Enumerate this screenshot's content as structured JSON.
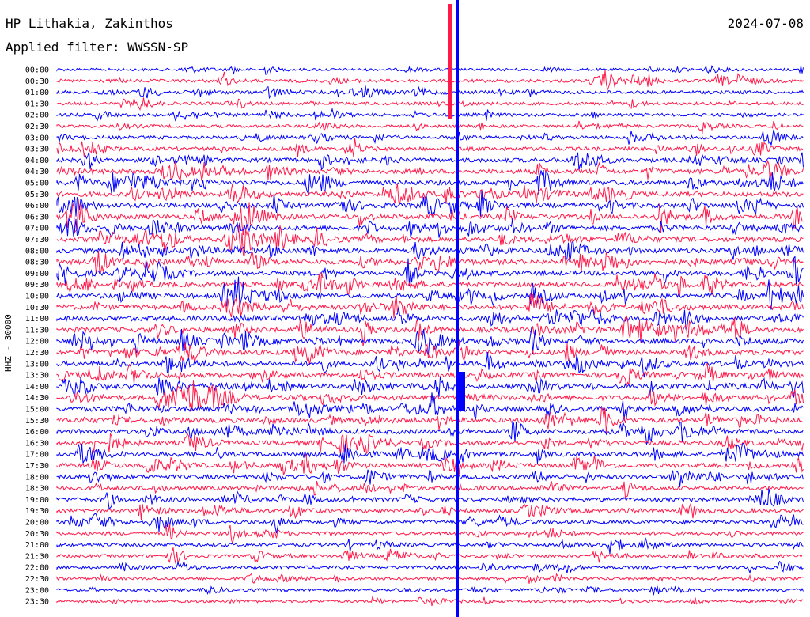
{
  "header": {
    "station": "HP Lithakia, Zakinthos",
    "date": "2024-07-08",
    "filter": "Applied filter: WWSSN-SP"
  },
  "channel_label": "HHZ - 30000",
  "colors": {
    "trace_a": "#0000ff",
    "trace_b": "#ff1a4a",
    "background": "#ffffff",
    "text": "#000000"
  },
  "chart_data": {
    "type": "line",
    "title": "HP Lithakia, Zakinthos",
    "subtitle": "Applied filter: WWSSN-SP",
    "ylabel": "HHZ - 30000",
    "row_labels": [
      "00:00",
      "00:30",
      "01:00",
      "01:30",
      "02:00",
      "02:30",
      "03:00",
      "03:30",
      "04:00",
      "04:30",
      "05:00",
      "05:30",
      "06:00",
      "06:30",
      "07:00",
      "07:30",
      "08:00",
      "08:30",
      "09:00",
      "09:30",
      "10:00",
      "10:30",
      "11:00",
      "11:30",
      "12:00",
      "12:30",
      "13:00",
      "13:30",
      "14:00",
      "14:30",
      "15:00",
      "15:30",
      "16:00",
      "16:30",
      "17:00",
      "17:30",
      "18:00",
      "18:30",
      "19:00",
      "19:30",
      "20:00",
      "20:30",
      "21:00",
      "21:30",
      "22:00",
      "22:30",
      "23:00",
      "23:30"
    ],
    "row_activity": [
      0.4,
      0.55,
      0.6,
      0.5,
      0.55,
      0.5,
      0.6,
      0.7,
      0.85,
      0.9,
      0.95,
      1.0,
      1.0,
      1.0,
      1.0,
      1.0,
      1.0,
      1.0,
      1.0,
      1.0,
      1.0,
      1.0,
      1.0,
      1.0,
      1.0,
      1.0,
      1.0,
      1.0,
      1.0,
      1.0,
      1.0,
      0.95,
      0.95,
      0.9,
      0.9,
      0.85,
      0.8,
      0.75,
      0.75,
      0.7,
      0.7,
      0.6,
      0.6,
      0.55,
      0.5,
      0.45,
      0.45,
      0.4
    ],
    "grid": false,
    "legend": "none"
  }
}
